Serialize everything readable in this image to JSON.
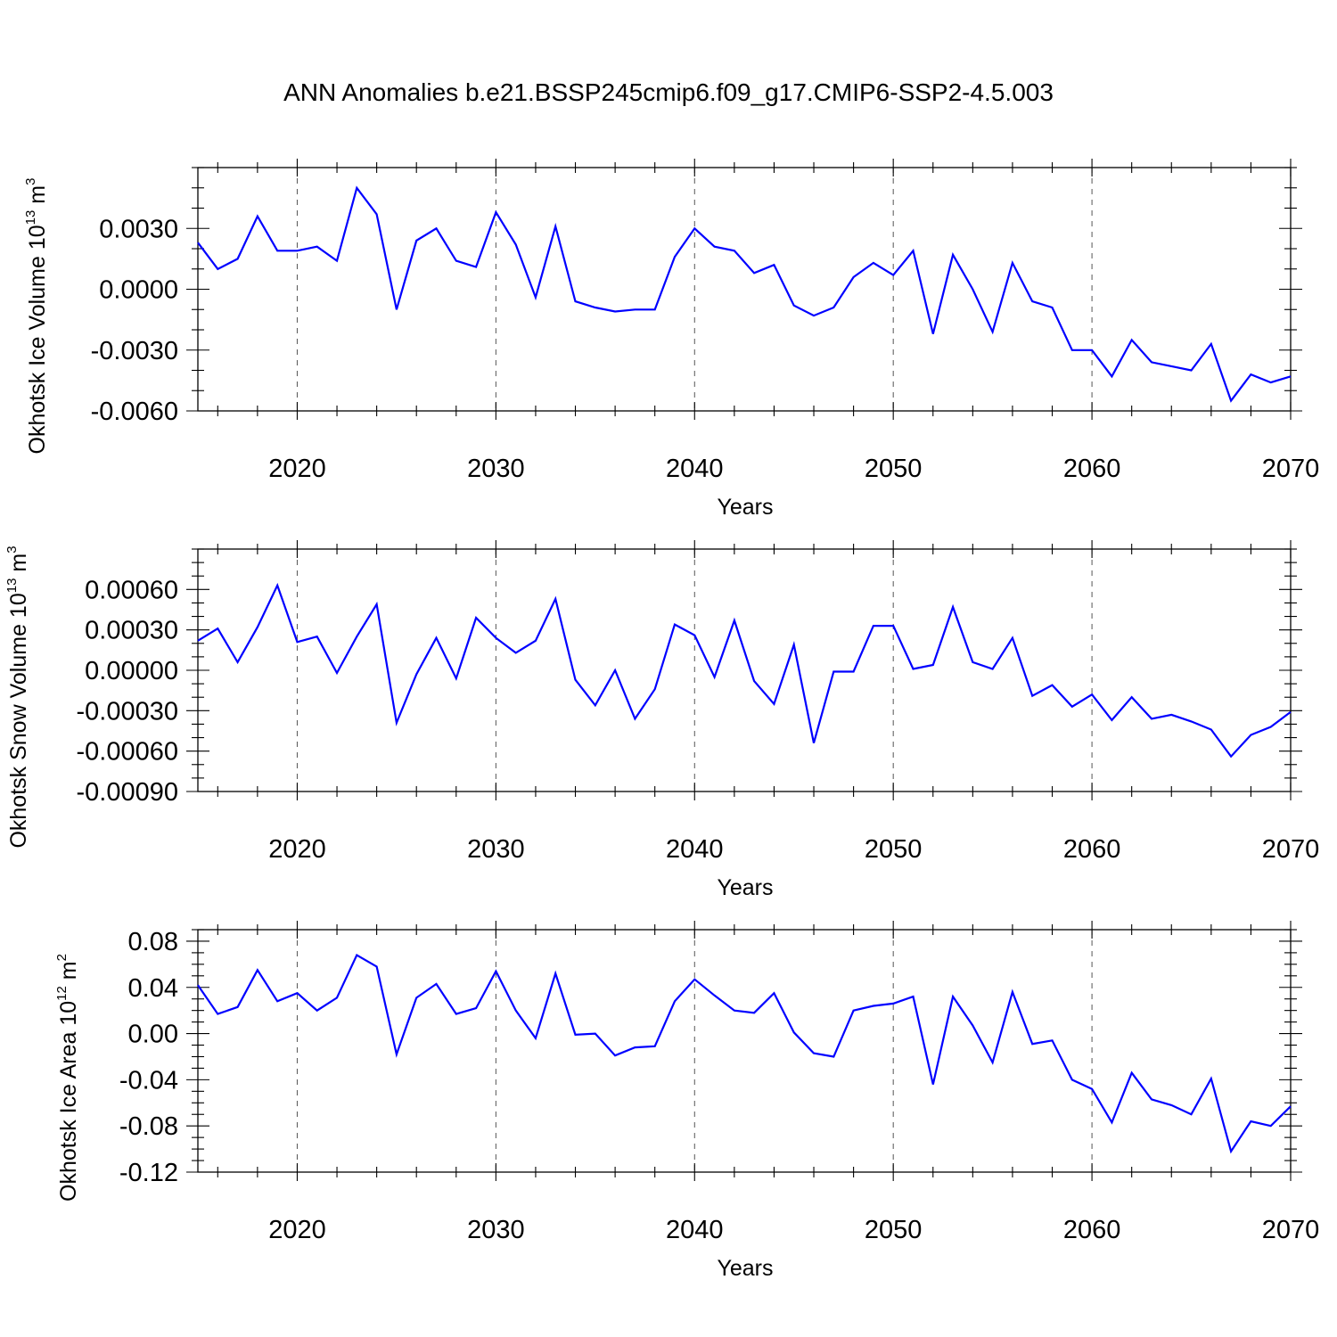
{
  "title": "ANN Anomalies b.e21.BSSP245cmip6.f09_g17.CMIP6-SSP2-4.5.003",
  "line_color": "#0000ff",
  "chart_data": [
    {
      "type": "line",
      "id": "ice-volume",
      "ylabel": "Okhotsk Ice Volume 10",
      "ylabel_exp": "13",
      "ylabel_unit": " m",
      "ylabel_unit_exp": "3",
      "xlabel": "Years",
      "xlim": [
        2015,
        2070
      ],
      "ylim": [
        -0.006,
        0.006
      ],
      "yticks": [
        -0.006,
        -0.003,
        0,
        0.003
      ],
      "ytick_labels": [
        "-0.0060",
        "-0.0030",
        "0.0000",
        "0.0030"
      ],
      "yminor_step": 0.001,
      "xticks": [
        2020,
        2030,
        2040,
        2050,
        2060,
        2070
      ],
      "xtick_labels": [
        "2020",
        "2030",
        "2040",
        "2050",
        "2060",
        "2070"
      ],
      "grid_x": [
        2020,
        2030,
        2040,
        2050,
        2060
      ],
      "x": [
        2015,
        2016,
        2017,
        2018,
        2019,
        2020,
        2021,
        2022,
        2023,
        2024,
        2025,
        2026,
        2027,
        2028,
        2029,
        2030,
        2031,
        2032,
        2033,
        2034,
        2035,
        2036,
        2037,
        2038,
        2039,
        2040,
        2041,
        2042,
        2043,
        2044,
        2045,
        2046,
        2047,
        2048,
        2049,
        2050,
        2051,
        2052,
        2053,
        2054,
        2055,
        2056,
        2057,
        2058,
        2059,
        2060,
        2061,
        2062,
        2063,
        2064,
        2065,
        2066,
        2067,
        2068,
        2069,
        2070
      ],
      "values": [
        0.0023,
        0.001,
        0.0015,
        0.0036,
        0.0019,
        0.0019,
        0.0021,
        0.0014,
        0.005,
        0.0037,
        -0.001,
        0.0024,
        0.003,
        0.0014,
        0.0011,
        0.0038,
        0.0022,
        -0.0004,
        0.0031,
        -0.0006,
        -0.0009,
        -0.0011,
        -0.001,
        -0.001,
        0.0016,
        0.003,
        0.0021,
        0.0019,
        0.0008,
        0.0012,
        -0.0008,
        -0.0013,
        -0.0009,
        0.0006,
        0.0013,
        0.0007,
        0.0019,
        -0.0022,
        0.0017,
        0.0,
        -0.0021,
        0.0013,
        -0.0006,
        -0.0009,
        -0.003,
        -0.003,
        -0.0043,
        -0.0025,
        -0.0036,
        -0.0038,
        -0.004,
        -0.0027,
        -0.0055,
        -0.0042,
        -0.0046,
        -0.0043
      ]
    },
    {
      "type": "line",
      "id": "snow-volume",
      "ylabel": "Okhotsk Snow Volume 10",
      "ylabel_exp": "13",
      "ylabel_unit": " m",
      "ylabel_unit_exp": "3",
      "xlabel": "Years",
      "xlim": [
        2015,
        2070
      ],
      "ylim": [
        -0.0009,
        0.0009
      ],
      "yticks": [
        -0.0009,
        -0.0006,
        -0.0003,
        0,
        0.0003,
        0.0006
      ],
      "ytick_labels": [
        "-0.00090",
        "-0.00060",
        "-0.00030",
        "0.00000",
        "0.00030",
        "0.00060"
      ],
      "yminor_step": 0.0001,
      "xticks": [
        2020,
        2030,
        2040,
        2050,
        2060,
        2070
      ],
      "xtick_labels": [
        "2020",
        "2030",
        "2040",
        "2050",
        "2060",
        "2070"
      ],
      "grid_x": [
        2020,
        2030,
        2040,
        2050,
        2060
      ],
      "x": [
        2015,
        2016,
        2017,
        2018,
        2019,
        2020,
        2021,
        2022,
        2023,
        2024,
        2025,
        2026,
        2027,
        2028,
        2029,
        2030,
        2031,
        2032,
        2033,
        2034,
        2035,
        2036,
        2037,
        2038,
        2039,
        2040,
        2041,
        2042,
        2043,
        2044,
        2045,
        2046,
        2047,
        2048,
        2049,
        2050,
        2051,
        2052,
        2053,
        2054,
        2055,
        2056,
        2057,
        2058,
        2059,
        2060,
        2061,
        2062,
        2063,
        2064,
        2065,
        2066,
        2067,
        2068,
        2069,
        2070
      ],
      "values": [
        0.00022,
        0.00031,
        6e-05,
        0.00032,
        0.00063,
        0.00021,
        0.00025,
        -2e-05,
        0.00025,
        0.00049,
        -0.00039,
        -3e-05,
        0.00024,
        -6e-05,
        0.00039,
        0.00024,
        0.00013,
        0.00022,
        0.00053,
        -7e-05,
        -0.00026,
        0.0,
        -0.00036,
        -0.00014,
        0.00034,
        0.00026,
        -5e-05,
        0.00037,
        -8e-05,
        -0.00025,
        0.00019,
        -0.00054,
        -1e-05,
        -1e-05,
        0.00033,
        0.00033,
        1e-05,
        4e-05,
        0.00047,
        6e-05,
        1e-05,
        0.00024,
        -0.00019,
        -0.00011,
        -0.00027,
        -0.00018,
        -0.00037,
        -0.0002,
        -0.00036,
        -0.00033,
        -0.00038,
        -0.00044,
        -0.00064,
        -0.00048,
        -0.00042,
        -0.00031
      ]
    },
    {
      "type": "line",
      "id": "ice-area",
      "ylabel": "Okhotsk Ice Area 10",
      "ylabel_exp": "12",
      "ylabel_unit": " m",
      "ylabel_unit_exp": "2",
      "xlabel": "Years",
      "xlim": [
        2015,
        2070
      ],
      "ylim": [
        -0.12,
        0.09
      ],
      "yticks": [
        -0.12,
        -0.08,
        -0.04,
        0,
        0.04,
        0.08
      ],
      "ytick_labels": [
        "-0.12",
        "-0.08",
        "-0.04",
        "0.00",
        "0.04",
        "0.08"
      ],
      "yminor_step": 0.01,
      "xticks": [
        2020,
        2030,
        2040,
        2050,
        2060,
        2070
      ],
      "xtick_labels": [
        "2020",
        "2030",
        "2040",
        "2050",
        "2060",
        "2070"
      ],
      "grid_x": [
        2020,
        2030,
        2040,
        2050,
        2060
      ],
      "x": [
        2015,
        2016,
        2017,
        2018,
        2019,
        2020,
        2021,
        2022,
        2023,
        2024,
        2025,
        2026,
        2027,
        2028,
        2029,
        2030,
        2031,
        2032,
        2033,
        2034,
        2035,
        2036,
        2037,
        2038,
        2039,
        2040,
        2041,
        2042,
        2043,
        2044,
        2045,
        2046,
        2047,
        2048,
        2049,
        2050,
        2051,
        2052,
        2053,
        2054,
        2055,
        2056,
        2057,
        2058,
        2059,
        2060,
        2061,
        2062,
        2063,
        2064,
        2065,
        2066,
        2067,
        2068,
        2069,
        2070
      ],
      "values": [
        0.042,
        0.017,
        0.023,
        0.055,
        0.028,
        0.035,
        0.02,
        0.031,
        0.068,
        0.058,
        -0.018,
        0.031,
        0.043,
        0.017,
        0.022,
        0.054,
        0.02,
        -0.004,
        0.052,
        -0.001,
        0.0,
        -0.019,
        -0.012,
        -0.011,
        0.028,
        0.047,
        0.033,
        0.02,
        0.018,
        0.035,
        0.001,
        -0.017,
        -0.02,
        0.02,
        0.024,
        0.026,
        0.032,
        -0.044,
        0.032,
        0.007,
        -0.025,
        0.036,
        -0.009,
        -0.006,
        -0.04,
        -0.048,
        -0.077,
        -0.034,
        -0.057,
        -0.062,
        -0.07,
        -0.039,
        -0.102,
        -0.076,
        -0.08,
        -0.063
      ]
    }
  ]
}
